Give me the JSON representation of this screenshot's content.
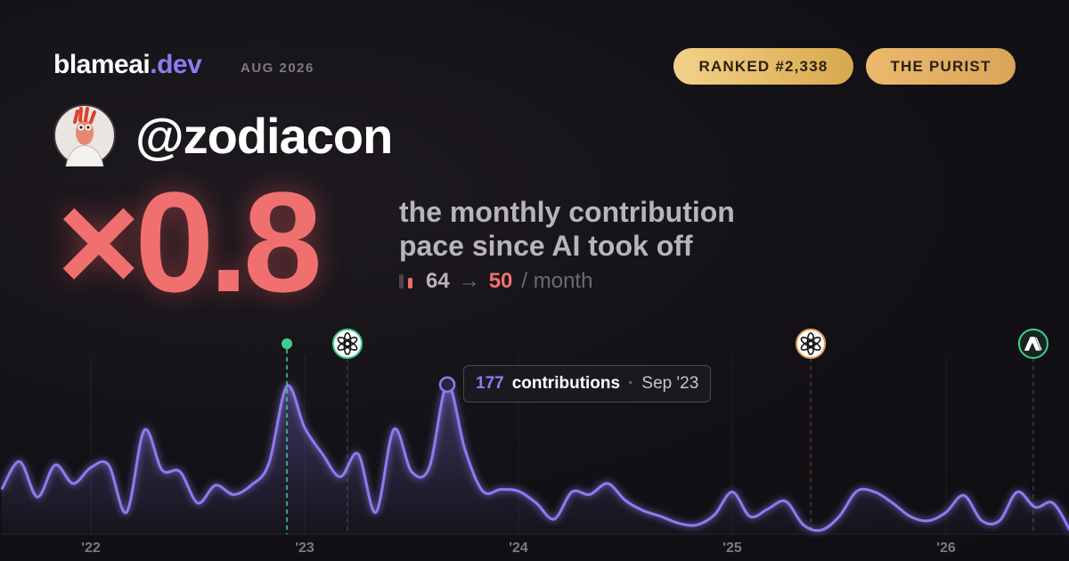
{
  "header": {
    "brand": "blameai",
    "brand_suffix": ".dev",
    "period": "AUG 2026",
    "badges": [
      "RANKED #2,338",
      "THE PURIST"
    ]
  },
  "profile": {
    "handle": "@zodiacon"
  },
  "stat": {
    "multiplier": "×0.8",
    "caption_lines": [
      "the monthly contribution",
      "pace since AI took off"
    ],
    "before": "64",
    "arrow": "→",
    "after": "50",
    "unit": "/ month"
  },
  "tooltip": {
    "label": "contributions",
    "separator": "·",
    "date": "Sep '23"
  },
  "chart_data": {
    "type": "line",
    "x": [
      2021.583,
      2021.667,
      2021.75,
      2021.833,
      2021.917,
      2022.0,
      2022.083,
      2022.167,
      2022.25,
      2022.333,
      2022.417,
      2022.5,
      2022.583,
      2022.667,
      2022.75,
      2022.833,
      2022.917,
      2023.0,
      2023.083,
      2023.167,
      2023.25,
      2023.333,
      2023.417,
      2023.5,
      2023.583,
      2023.667,
      2023.75,
      2023.833,
      2023.917,
      2024.0,
      2024.083,
      2024.167,
      2024.25,
      2024.333,
      2024.417,
      2024.5,
      2024.583,
      2024.667,
      2024.75,
      2024.833,
      2024.917,
      2025.0,
      2025.083,
      2025.167,
      2025.25,
      2025.333,
      2025.417,
      2025.5,
      2025.583,
      2025.667,
      2025.75,
      2025.833,
      2025.917,
      2026.0,
      2026.083,
      2026.167,
      2026.25,
      2026.333,
      2026.417,
      2026.5,
      2026.583
    ],
    "series": [
      {
        "name": "contributions",
        "color": "#8b7cf0",
        "values": [
          53,
          86,
          44,
          82,
          60,
          79,
          82,
          26,
          123,
          76,
          74,
          37,
          58,
          47,
          58,
          84,
          175,
          126,
          95,
          68,
          95,
          26,
          124,
          74,
          79,
          177,
          100,
          51,
          53,
          51,
          37,
          18,
          50,
          47,
          60,
          40,
          28,
          21,
          13,
          11,
          23,
          50,
          21,
          30,
          39,
          11,
          5,
          21,
          51,
          50,
          37,
          21,
          16,
          26,
          46,
          16,
          16,
          50,
          32,
          37,
          3
        ]
      }
    ],
    "xlim": [
      2021.575,
      2026.575
    ],
    "ylim": [
      0,
      200
    ],
    "xticks": [
      {
        "value": 2022,
        "label": "'22"
      },
      {
        "value": 2023,
        "label": "'23"
      },
      {
        "value": 2024,
        "label": "'24"
      },
      {
        "value": 2025,
        "label": "'25"
      },
      {
        "value": 2026,
        "label": "'26"
      }
    ],
    "events_x": [
      2022.917,
      2023.2,
      2025.367,
      2026.408
    ],
    "highlight_index": 25
  }
}
